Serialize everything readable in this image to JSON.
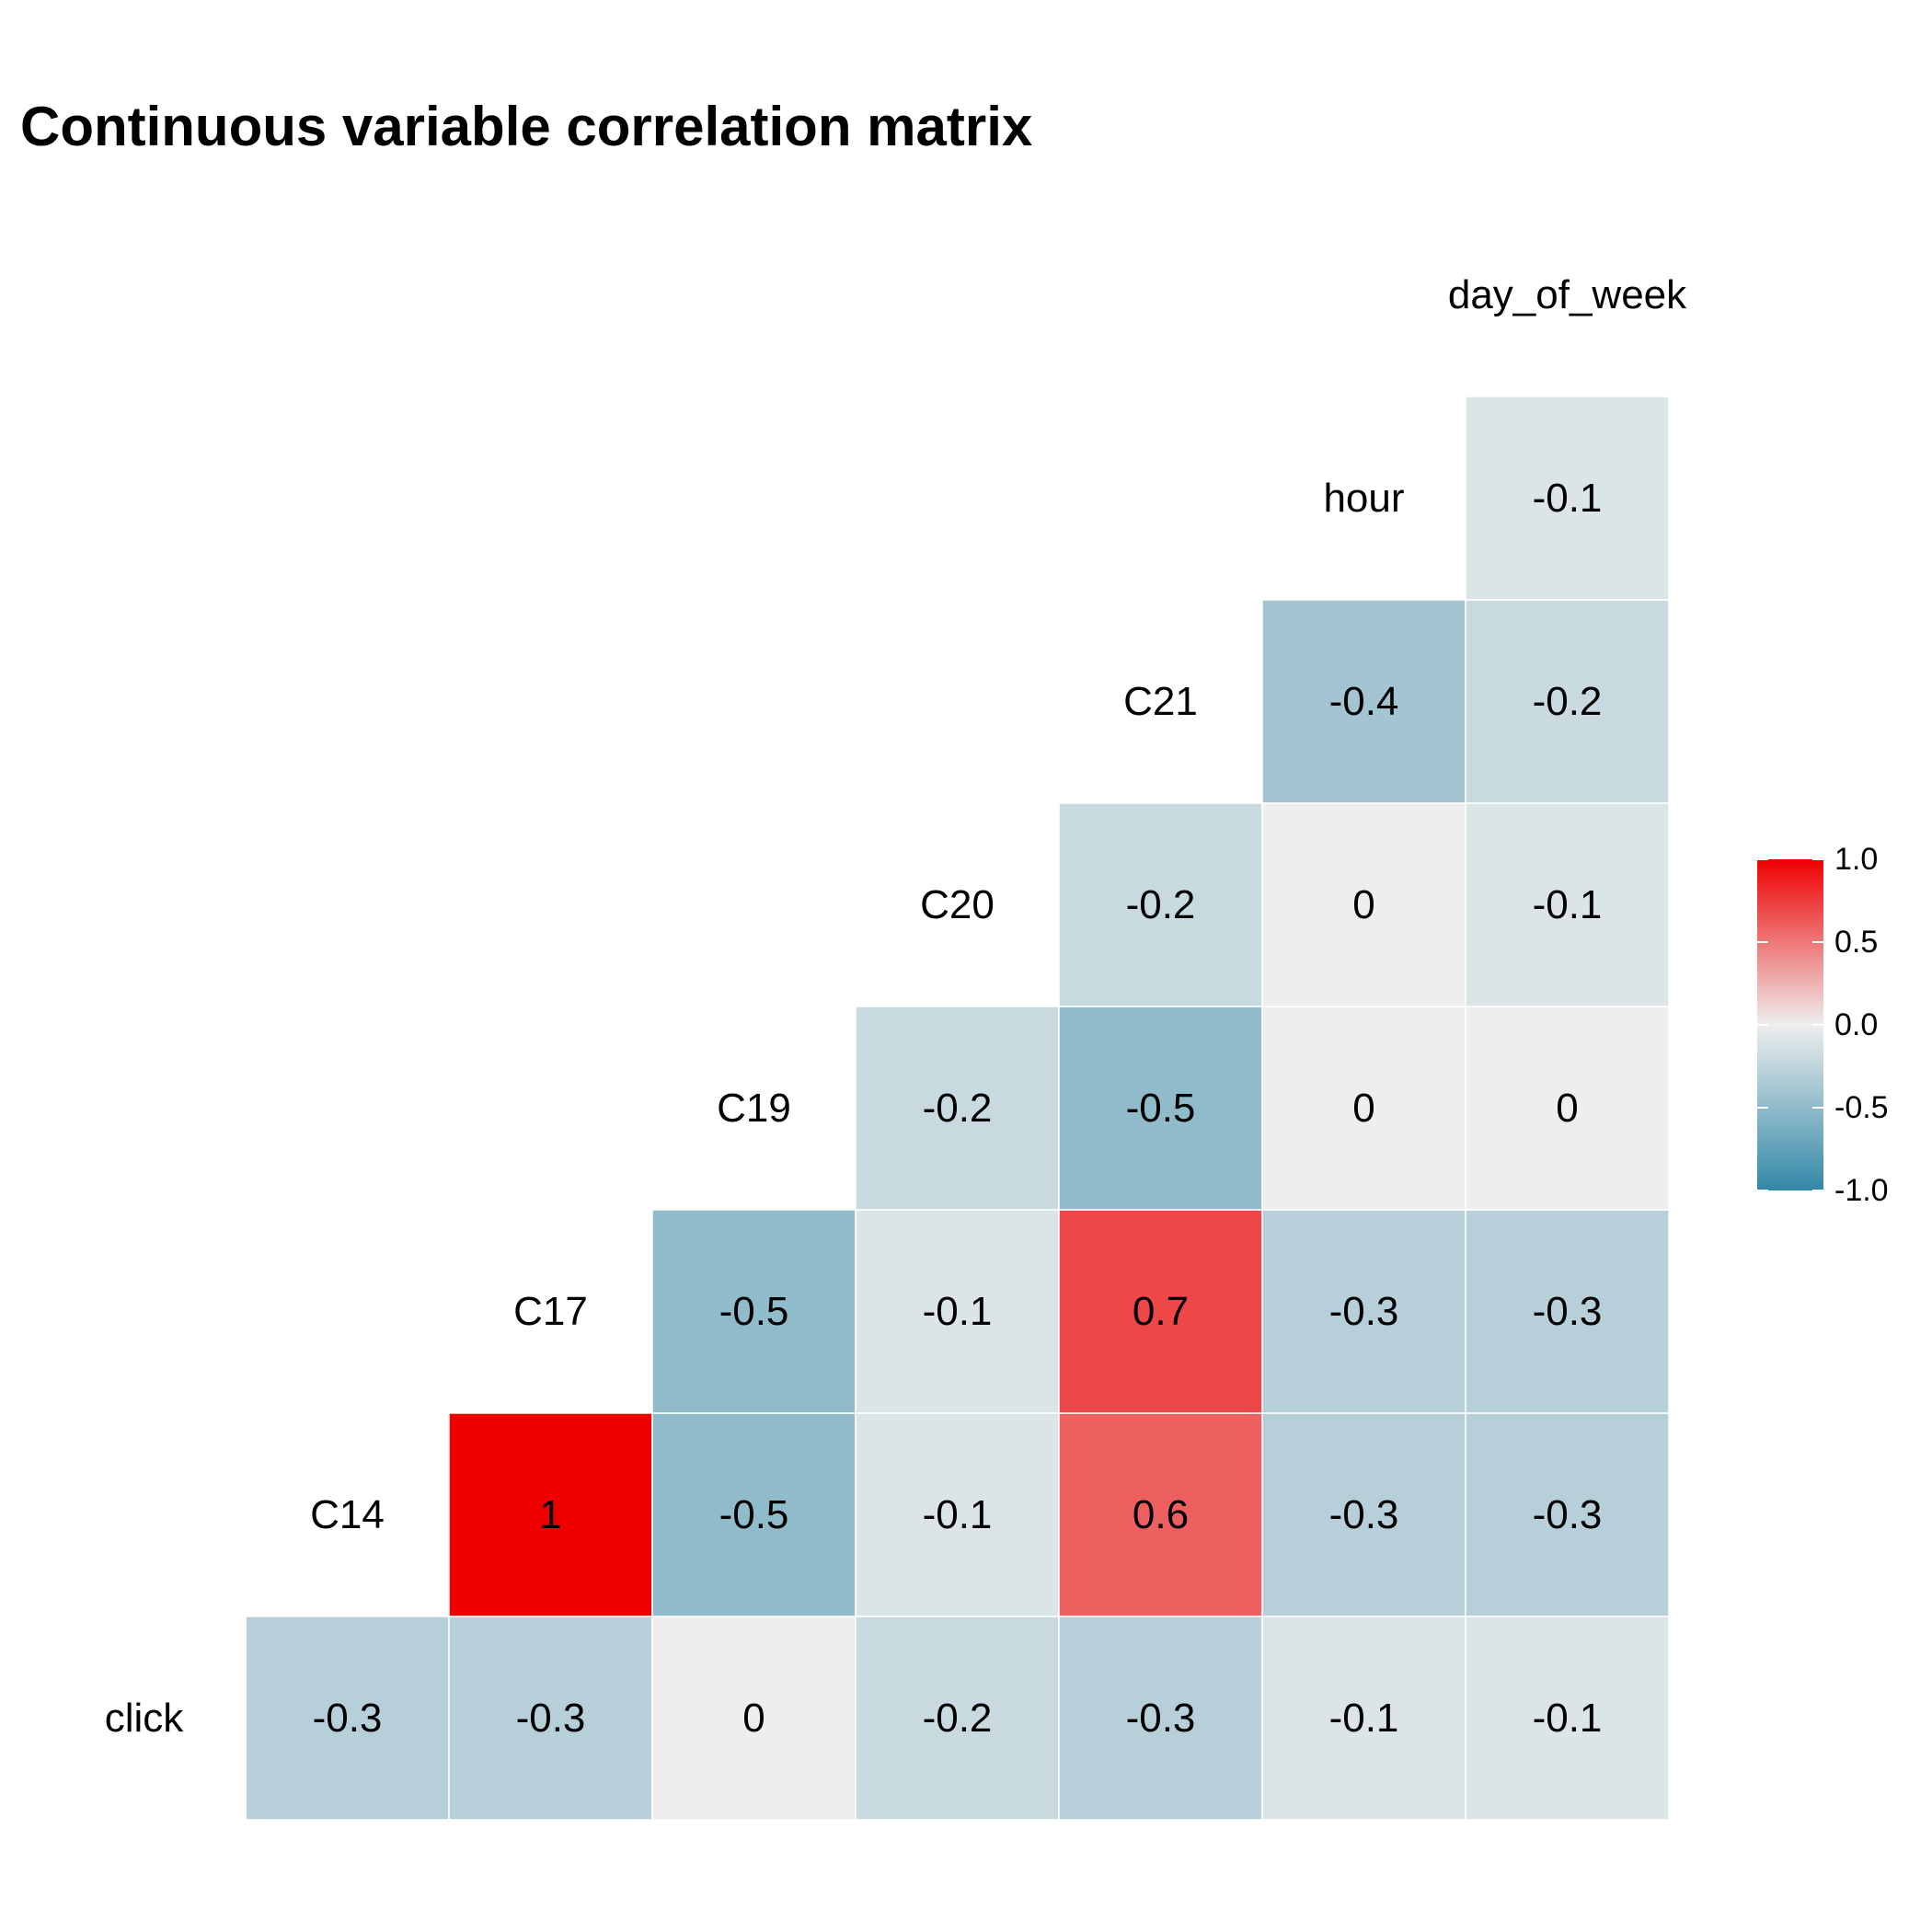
{
  "chart_data": {
    "type": "heatmap",
    "title": "Continuous variable correlation matrix",
    "variables": [
      "click",
      "C14",
      "C17",
      "C19",
      "C20",
      "C21",
      "hour",
      "day_of_week"
    ],
    "cells": [
      {
        "row": "click",
        "col": "C14",
        "value": -0.3,
        "label": "-0.3"
      },
      {
        "row": "click",
        "col": "C17",
        "value": -0.3,
        "label": "-0.3"
      },
      {
        "row": "click",
        "col": "C19",
        "value": 0,
        "label": "0"
      },
      {
        "row": "click",
        "col": "C20",
        "value": -0.2,
        "label": "-0.2"
      },
      {
        "row": "click",
        "col": "C21",
        "value": -0.3,
        "label": "-0.3"
      },
      {
        "row": "click",
        "col": "hour",
        "value": -0.1,
        "label": "-0.1"
      },
      {
        "row": "click",
        "col": "day_of_week",
        "value": -0.1,
        "label": "-0.1"
      },
      {
        "row": "C14",
        "col": "C17",
        "value": 1,
        "label": "1"
      },
      {
        "row": "C14",
        "col": "C19",
        "value": -0.5,
        "label": "-0.5"
      },
      {
        "row": "C14",
        "col": "C20",
        "value": -0.1,
        "label": "-0.1"
      },
      {
        "row": "C14",
        "col": "C21",
        "value": 0.6,
        "label": "0.6"
      },
      {
        "row": "C14",
        "col": "hour",
        "value": -0.3,
        "label": "-0.3"
      },
      {
        "row": "C14",
        "col": "day_of_week",
        "value": -0.3,
        "label": "-0.3"
      },
      {
        "row": "C17",
        "col": "C19",
        "value": -0.5,
        "label": "-0.5"
      },
      {
        "row": "C17",
        "col": "C20",
        "value": -0.1,
        "label": "-0.1"
      },
      {
        "row": "C17",
        "col": "C21",
        "value": 0.7,
        "label": "0.7"
      },
      {
        "row": "C17",
        "col": "hour",
        "value": -0.3,
        "label": "-0.3"
      },
      {
        "row": "C17",
        "col": "day_of_week",
        "value": -0.3,
        "label": "-0.3"
      },
      {
        "row": "C19",
        "col": "C20",
        "value": -0.2,
        "label": "-0.2"
      },
      {
        "row": "C19",
        "col": "C21",
        "value": -0.5,
        "label": "-0.5"
      },
      {
        "row": "C19",
        "col": "hour",
        "value": 0,
        "label": "0"
      },
      {
        "row": "C19",
        "col": "day_of_week",
        "value": 0,
        "label": "0"
      },
      {
        "row": "C20",
        "col": "C21",
        "value": -0.2,
        "label": "-0.2"
      },
      {
        "row": "C20",
        "col": "hour",
        "value": 0,
        "label": "0"
      },
      {
        "row": "C20",
        "col": "day_of_week",
        "value": -0.1,
        "label": "-0.1"
      },
      {
        "row": "C21",
        "col": "hour",
        "value": -0.4,
        "label": "-0.4"
      },
      {
        "row": "C21",
        "col": "day_of_week",
        "value": -0.2,
        "label": "-0.2"
      },
      {
        "row": "hour",
        "col": "day_of_week",
        "value": -0.1,
        "label": "-0.1"
      }
    ],
    "legend": {
      "placement": "right",
      "limits": [
        -1,
        1
      ],
      "ticks": [
        1.0,
        0.5,
        0.0,
        -0.5,
        -1.0
      ],
      "tick_labels": [
        "1.0",
        "0.5",
        "0.0",
        "-0.5",
        "-1.0"
      ],
      "colors": {
        "low": "#3288A6",
        "mid": "#EEEEEE",
        "high": "#EE0000"
      }
    },
    "grid": false
  }
}
